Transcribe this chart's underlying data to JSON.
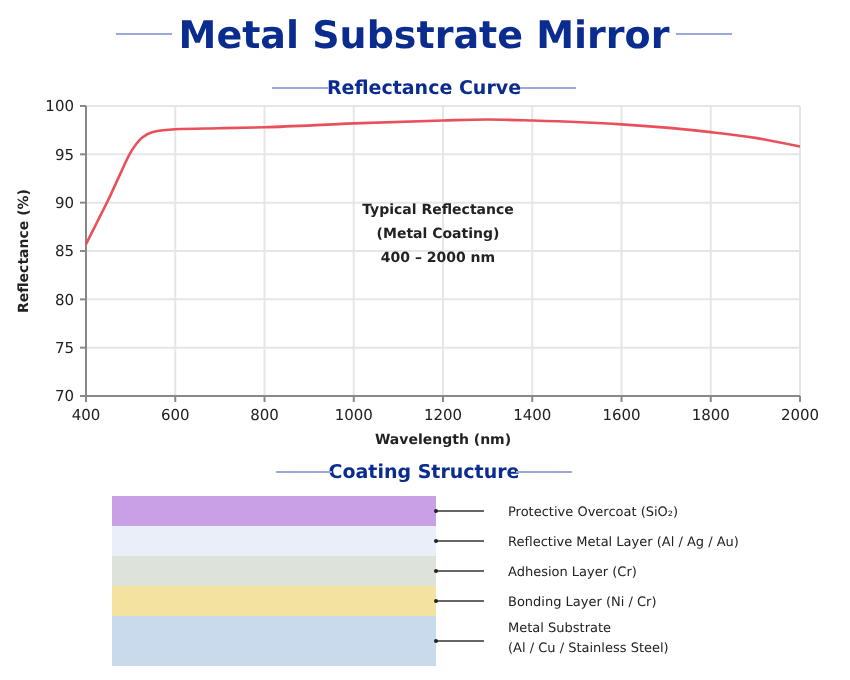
{
  "chart_data": {
    "type": "line",
    "title": "Metal Substrate Mirror",
    "subtitle": "Reflectance Curve",
    "xlabel": "Wavelength  (nm)",
    "ylabel": "Reflectance  (%)",
    "x": [
      400,
      425,
      450,
      475,
      500,
      525,
      550,
      600,
      700,
      800,
      1000,
      1200,
      1300,
      1400,
      1600,
      1800,
      1900,
      2000
    ],
    "series": [
      {
        "color": "#e8505b",
        "values": [
          85.7,
          88,
          90.3,
          92.8,
          95.2,
          96.7,
          97.3,
          97.6,
          97.7,
          97.8,
          98.2,
          98.5,
          98.6,
          98.5,
          98.1,
          97.3,
          96.7,
          95.8
        ]
      }
    ],
    "xlim": [
      400,
      2000
    ],
    "xticks": [
      400,
      600,
      800,
      1000,
      1200,
      1400,
      1600,
      1800,
      2000
    ],
    "ylim": [
      70,
      100
    ],
    "yticks": [
      70,
      75,
      80,
      85,
      90,
      95,
      100
    ],
    "grid": true,
    "marker": "none",
    "line_style": "solid",
    "annotations": [
      "Typical Reflectance",
      "(Metal Coating)",
      "400 – 2000 nm",
      "Coating Structure",
      "Protective Overcoat (SiO₂)",
      "Reflective Metal Layer (Al / Ag / Au)",
      "Adhesion Layer (Cr)",
      "Bonding Layer (Ni / Cr)",
      "Metal Substrate",
      "(Al / Cu / Stainless Steel)"
    ]
  }
}
